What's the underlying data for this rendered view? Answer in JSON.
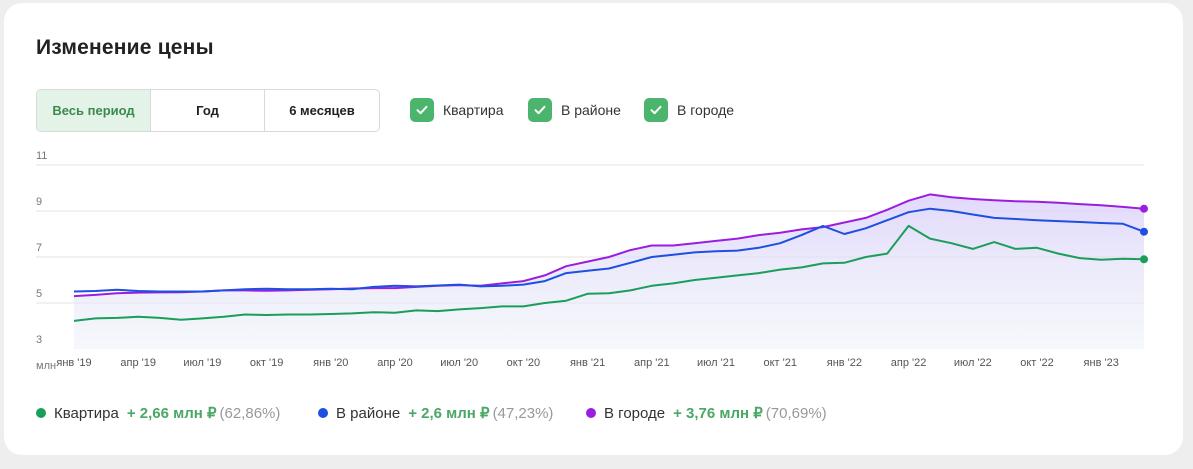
{
  "widget": {
    "title": "Изменение цены",
    "periods": [
      "Весь период",
      "Год",
      "6 месяцев"
    ],
    "active_period": "Весь период",
    "filters": [
      {
        "label": "Квартира",
        "checked": true
      },
      {
        "label": "В районе",
        "checked": true
      },
      {
        "label": "В городе",
        "checked": true
      }
    ],
    "accent": "#4bb46d"
  },
  "legend": [
    {
      "name": "Квартира",
      "delta": "+ 2,66 млн ₽",
      "pct": "(62,86%)",
      "color": "#1a9e5a"
    },
    {
      "name": "В районе",
      "delta": "+ 2,6 млн ₽",
      "pct": "(47,23%)",
      "color": "#1f4fe0"
    },
    {
      "name": "В городе",
      "delta": "+ 3,76 млн ₽",
      "pct": "(70,69%)",
      "color": "#9b1de0"
    }
  ],
  "chart_data": {
    "type": "line",
    "unit_label": "млн",
    "ylim": [
      3,
      11
    ],
    "yticks": [
      3,
      5,
      7,
      9,
      11
    ],
    "grid": true,
    "x_tick_labels": [
      "янв '19",
      "апр '19",
      "июл '19",
      "окт '19",
      "янв '20",
      "апр '20",
      "июл '20",
      "окт '20",
      "янв '21",
      "апр '21",
      "июл '21",
      "окт '21",
      "янв '22",
      "апр '22",
      "июл '22",
      "окт '22",
      "янв '23"
    ],
    "x_tick_index": [
      0,
      3,
      6,
      9,
      12,
      15,
      18,
      21,
      24,
      27,
      30,
      33,
      36,
      39,
      42,
      45,
      48
    ],
    "series": [
      {
        "name": "В городе",
        "color": "#9b1de0",
        "values": [
          5.3,
          5.35,
          5.42,
          5.45,
          5.46,
          5.47,
          5.5,
          5.55,
          5.55,
          5.53,
          5.55,
          5.58,
          5.6,
          5.63,
          5.65,
          5.65,
          5.7,
          5.75,
          5.78,
          5.75,
          5.85,
          5.95,
          6.2,
          6.6,
          6.8,
          7.0,
          7.3,
          7.5,
          7.5,
          7.6,
          7.7,
          7.8,
          7.95,
          8.05,
          8.2,
          8.3,
          8.5,
          8.7,
          9.05,
          9.45,
          9.72,
          9.6,
          9.52,
          9.47,
          9.42,
          9.4,
          9.36,
          9.3,
          9.25,
          9.18,
          9.1
        ]
      },
      {
        "name": "В районе",
        "color": "#1f4fe0",
        "values": [
          5.5,
          5.52,
          5.58,
          5.52,
          5.5,
          5.5,
          5.5,
          5.55,
          5.6,
          5.62,
          5.6,
          5.6,
          5.62,
          5.6,
          5.7,
          5.75,
          5.72,
          5.76,
          5.8,
          5.72,
          5.75,
          5.8,
          5.95,
          6.3,
          6.4,
          6.5,
          6.75,
          7.0,
          7.1,
          7.2,
          7.25,
          7.28,
          7.4,
          7.6,
          7.95,
          8.35,
          8.0,
          8.25,
          8.6,
          8.95,
          9.1,
          9.0,
          8.85,
          8.7,
          8.65,
          8.6,
          8.56,
          8.52,
          8.48,
          8.45,
          8.1
        ]
      },
      {
        "name": "Квартира",
        "color": "#1a9e5a",
        "values": [
          4.22,
          4.33,
          4.35,
          4.4,
          4.35,
          4.27,
          4.33,
          4.4,
          4.5,
          4.48,
          4.5,
          4.5,
          4.52,
          4.55,
          4.6,
          4.58,
          4.68,
          4.65,
          4.72,
          4.78,
          4.85,
          4.85,
          5.0,
          5.1,
          5.4,
          5.42,
          5.55,
          5.75,
          5.85,
          6.0,
          6.1,
          6.2,
          6.3,
          6.45,
          6.55,
          6.72,
          6.75,
          7.0,
          7.15,
          8.35,
          7.8,
          7.6,
          7.35,
          7.65,
          7.35,
          7.4,
          7.15,
          6.95,
          6.88,
          6.92,
          6.9
        ]
      }
    ]
  }
}
